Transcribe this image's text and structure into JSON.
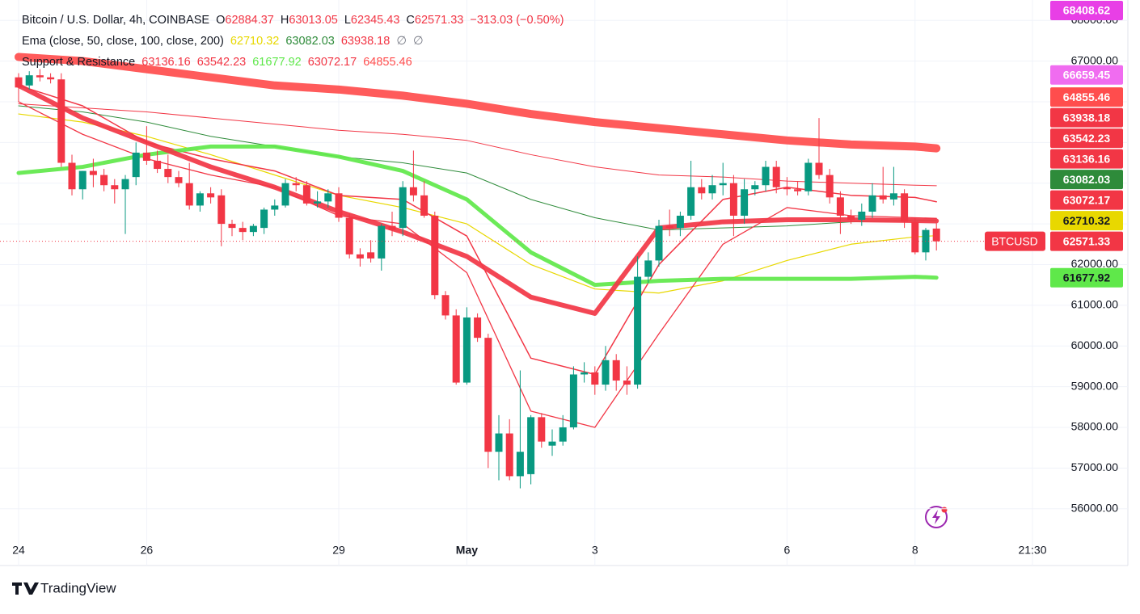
{
  "chart_data": {
    "type": "candlestick",
    "title": "Bitcoin / U.S. Dollar, 4h, COINBASE",
    "ohlc_labels": [
      "O",
      "H",
      "L",
      "C"
    ],
    "change_label": "−313.03 (−0.50%)",
    "symbol": "BTCUSD",
    "brand": "TradingView",
    "up_color": "#089981",
    "down_color": "#f23645",
    "grid": true,
    "categories": [
      "24",
      null,
      null,
      null,
      null,
      null,
      null,
      null,
      null,
      null,
      null,
      null,
      "26",
      null,
      null,
      null,
      null,
      null,
      null,
      null,
      null,
      null,
      null,
      null,
      null,
      null,
      null,
      null,
      null,
      null,
      "29",
      null,
      null,
      null,
      null,
      null,
      null,
      null,
      null,
      null,
      null,
      null,
      "May",
      null,
      null,
      null,
      null,
      null,
      null,
      null,
      null,
      null,
      null,
      null,
      "3",
      null,
      null,
      null,
      null,
      null,
      null,
      null,
      null,
      null,
      null,
      null,
      null,
      null,
      null,
      null,
      null,
      null,
      "6",
      null,
      null,
      null,
      null,
      null,
      null,
      null,
      null,
      null,
      null,
      null,
      "8",
      null,
      null,
      null,
      null,
      null,
      null,
      null,
      null,
      null,
      null,
      "21:30"
    ],
    "open": [
      66600,
      66400,
      66650,
      66600,
      66550,
      64500,
      63850,
      64300,
      64200,
      63950,
      63850,
      64150,
      64750,
      64550,
      64350,
      64150,
      64000,
      63450,
      63750,
      63700,
      63000,
      62900,
      62800,
      62900,
      63350,
      63450,
      64000,
      63950,
      63500,
      63550,
      63750,
      63150,
      62250,
      62300,
      62150,
      62950,
      62900,
      63900,
      63700,
      63200,
      61250,
      60750,
      59100,
      60700,
      60200,
      57400,
      57850,
      56800,
      56850,
      58250,
      57550,
      57650,
      58000,
      59300,
      59350,
      59050,
      59650,
      59150,
      59050,
      61700,
      62100,
      62950,
      62900,
      63200,
      63900,
      63750,
      63950,
      64000,
      63200,
      63850,
      63950,
      64400,
      63900,
      63850,
      63800,
      64500,
      64200,
      63650,
      63200,
      63100,
      63300,
      63700,
      63600,
      63750,
      63050,
      62300,
      62884.37,
      null,
      null,
      null,
      null,
      null,
      null,
      null,
      null,
      null
    ],
    "high": [
      66700,
      66750,
      66800,
      66700,
      66700,
      64700,
      64300,
      64600,
      64350,
      64100,
      64200,
      65000,
      65400,
      64800,
      64700,
      64300,
      64500,
      63800,
      63900,
      63850,
      63100,
      63050,
      63000,
      63400,
      63600,
      64100,
      64150,
      64050,
      63800,
      63850,
      63900,
      63250,
      62400,
      62600,
      63000,
      63300,
      64050,
      64800,
      64050,
      63300,
      61350,
      60900,
      60950,
      60800,
      60300,
      58300,
      58200,
      59400,
      58300,
      58350,
      57950,
      58300,
      59500,
      59600,
      59500,
      60000,
      59800,
      59500,
      62200,
      62300,
      63100,
      63350,
      63300,
      64550,
      64100,
      64200,
      64500,
      64200,
      64100,
      64050,
      64550,
      64550,
      64150,
      64050,
      64600,
      65600,
      64350,
      63800,
      63350,
      63500,
      64000,
      64400,
      64400,
      63850,
      63150,
      62900,
      63013.05,
      null,
      null,
      null,
      null,
      null,
      null,
      null,
      null,
      null
    ],
    "low": [
      66000,
      66300,
      66500,
      66450,
      64400,
      63700,
      63600,
      63900,
      63800,
      63500,
      62750,
      63950,
      64450,
      64250,
      64000,
      63900,
      63350,
      63300,
      63500,
      62450,
      62700,
      62600,
      62700,
      62750,
      63200,
      63400,
      63800,
      63450,
      63400,
      63400,
      63050,
      62150,
      61950,
      62050,
      61850,
      62700,
      62700,
      63550,
      63150,
      61150,
      60650,
      59050,
      59050,
      60100,
      57000,
      56700,
      56700,
      56500,
      56600,
      57500,
      57300,
      57550,
      57950,
      59100,
      58800,
      58900,
      58900,
      58800,
      58950,
      61550,
      61950,
      62700,
      62700,
      63100,
      63600,
      63600,
      63700,
      62700,
      63000,
      63700,
      63800,
      63750,
      63700,
      63700,
      63700,
      64100,
      63500,
      62750,
      63000,
      62950,
      63150,
      63500,
      63450,
      62900,
      62250,
      62100,
      62345.43,
      null,
      null,
      null,
      null,
      null,
      null,
      null,
      null,
      null
    ],
    "close": [
      66350,
      66650,
      66600,
      66550,
      64500,
      63850,
      64300,
      64200,
      63950,
      63850,
      64100,
      64750,
      64550,
      64350,
      64150,
      64000,
      63450,
      63750,
      63650,
      63000,
      62900,
      62800,
      62950,
      63350,
      63450,
      64000,
      63950,
      63500,
      63550,
      63750,
      63150,
      62250,
      62150,
      62150,
      62950,
      62850,
      63900,
      63700,
      63200,
      61250,
      60750,
      59100,
      60700,
      60200,
      57400,
      57850,
      56800,
      57400,
      58250,
      57650,
      57650,
      58000,
      59300,
      59350,
      59050,
      59650,
      59150,
      59050,
      61700,
      62100,
      62950,
      62900,
      63200,
      63900,
      63750,
      63950,
      64000,
      63200,
      63850,
      63950,
      64400,
      63900,
      63850,
      63800,
      64500,
      64200,
      63650,
      63200,
      63100,
      63300,
      63700,
      63600,
      63750,
      63050,
      62300,
      62850,
      62571.33,
      null,
      null,
      null,
      null,
      null,
      null,
      null,
      null,
      null
    ],
    "ylim": [
      55300,
      68500
    ],
    "yticks": [
      {
        "value": 56000,
        "label": "56000.00"
      },
      {
        "value": 57000,
        "label": "57000.00"
      },
      {
        "value": 58000,
        "label": "58000.00"
      },
      {
        "value": 59000,
        "label": "59000.00"
      },
      {
        "value": 60000,
        "label": "60000.00"
      },
      {
        "value": 61000,
        "label": "61000.00"
      },
      {
        "value": 62000,
        "label": "62000.00"
      },
      {
        "value": 63000,
        "label": "63000.00"
      },
      {
        "value": 64000,
        "label": "64000.00"
      },
      {
        "value": 65000,
        "label": "65000.00"
      },
      {
        "value": 66000,
        "label": "66000.00"
      },
      {
        "value": 67000,
        "label": "67000.00"
      },
      {
        "value": 68000,
        "label": "68000.00"
      }
    ],
    "indicators": [
      {
        "title": "Ema (close, 50, close, 100, close, 200)",
        "extra": [
          "∅",
          "∅"
        ],
        "x": [
          0,
          6,
          12,
          18,
          24,
          30,
          36,
          42,
          48,
          54,
          60,
          66,
          72,
          78,
          84,
          86
        ],
        "series": [
          {
            "color": "#e8d800",
            "width": 1.2,
            "values": [
              65700,
              65500,
              65150,
              64700,
              64200,
              63700,
              63400,
              63000,
              62000,
              61400,
              61300,
              61600,
              62100,
              62500,
              62680,
              62710.32
            ]
          },
          {
            "color": "#2e8b3a",
            "width": 1,
            "values": [
              65900,
              65750,
              65500,
              65150,
              64900,
              64650,
              64500,
              64250,
              63600,
              63150,
              62850,
              62900,
              62950,
              63050,
              63080,
              63082.03
            ]
          },
          {
            "color": "#f23645",
            "width": 1,
            "values": [
              65950,
              65850,
              65750,
              65600,
              65450,
              65300,
              65200,
              65050,
              64700,
              64400,
              64200,
              64150,
              64050,
              64000,
              63950,
              63938.18
            ]
          }
        ]
      },
      {
        "title": "Support & Resistance",
        "x": [
          0,
          6,
          12,
          18,
          24,
          30,
          36,
          42,
          48,
          54,
          60,
          66,
          72,
          78,
          84,
          86
        ],
        "series": [
          {
            "color": "#f23645",
            "width": 1.3,
            "values": [
              66000,
              65200,
              64600,
              64200,
              63900,
              63200,
              63000,
              61800,
              58400,
              58000,
              60300,
              62500,
              63400,
              63200,
              63150,
              63136.16
            ]
          },
          {
            "color": "#f23645",
            "width": 1.5,
            "values": [
              66400,
              65900,
              65000,
              64600,
              64300,
              63700,
              63600,
              62700,
              59700,
              59300,
              62000,
              63600,
              63900,
              63700,
              63650,
              63542.23
            ]
          },
          {
            "color": "#5fe84a",
            "width": 5,
            "values": [
              64250,
              64400,
              64700,
              64900,
              64900,
              64650,
              64300,
              63600,
              62300,
              61500,
              61600,
              61650,
              61650,
              61650,
              61700,
              61677.92
            ]
          },
          {
            "color": "#f23645",
            "width": 6,
            "values": [
              66400,
              65600,
              65000,
              64400,
              63900,
              63300,
              62800,
              62200,
              61200,
              60800,
              62900,
              63050,
              63100,
              63100,
              63080,
              63072.17
            ]
          },
          {
            "color": "#ff4d4d",
            "width": 10,
            "values": [
              67100,
              67000,
              66800,
              66600,
              66400,
              66300,
              66150,
              65950,
              65700,
              65500,
              65350,
              65200,
              65050,
              64950,
              64900,
              64855.46
            ]
          }
        ]
      }
    ],
    "price_tags": [
      {
        "value": 68408.62,
        "color": "#e83fe6"
      },
      {
        "value": 66659.45,
        "color": "#f06cf0"
      }
    ]
  }
}
